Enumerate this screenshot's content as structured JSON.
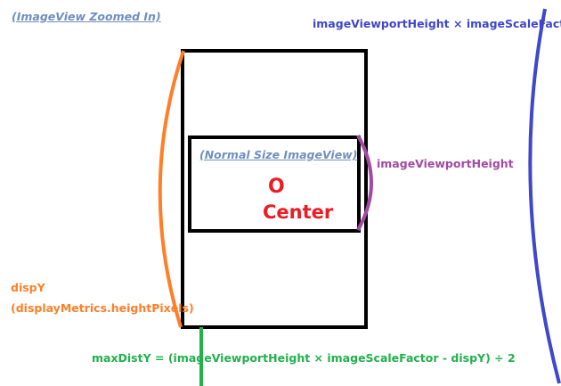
{
  "labels": {
    "zoomed_title": "(ImageView Zoomed In)",
    "viewport_scale": "imageViewportHeight × imageScaleFactor",
    "normal_title": "(Normal Size ImageView)",
    "viewport_height": "imageViewportHeight",
    "center_mark": "O",
    "center": "Center",
    "dispy": "dispY",
    "dispy_source": "(displayMetrics.heightPixels)",
    "max_dist": "maxDistY = (imageViewportHeight × imageScaleFactor - dispY) ÷ 2"
  },
  "colors": {
    "outline": "#000000",
    "title_text": "#6f8fbf",
    "blue": "#3f47cc",
    "purple": "#a349a4",
    "red": "#ed1c24",
    "orange": "#ff7f27",
    "green": "#22b14c"
  }
}
